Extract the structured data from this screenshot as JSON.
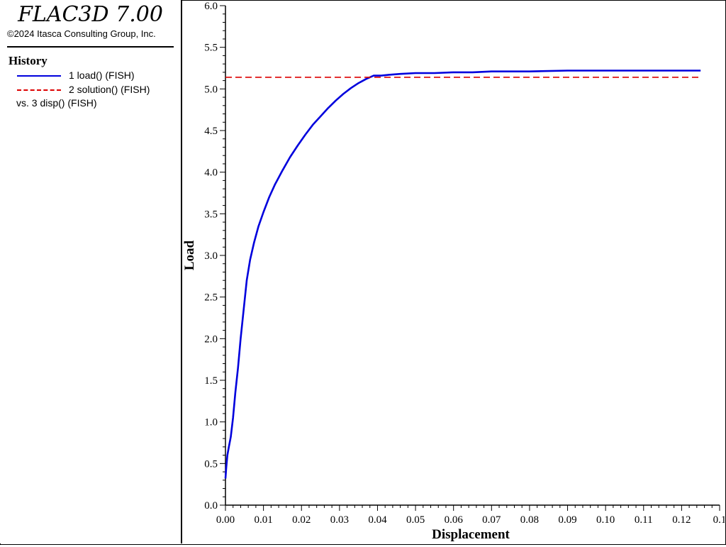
{
  "app": {
    "title": "FLAC3D 7.00",
    "copyright": "©2024 Itasca Consulting Group, Inc."
  },
  "legend": {
    "heading": "History",
    "entries": [
      {
        "label": "1 load() (FISH)",
        "color": "#0000dd",
        "style": "solid"
      },
      {
        "label": "2 solution() (FISH)",
        "color": "#dd0000",
        "style": "dashed"
      }
    ],
    "vs_label": "vs. 3 disp() (FISH)"
  },
  "chart_data": {
    "type": "line",
    "xlabel": "Displacement",
    "ylabel": "Load",
    "xlim": [
      0,
      0.13
    ],
    "ylim": [
      0,
      6.0
    ],
    "x_ticks": [
      "0.00",
      "0.01",
      "0.02",
      "0.03",
      "0.04",
      "0.05",
      "0.06",
      "0.07",
      "0.08",
      "0.09",
      "0.10",
      "0.11",
      "0.12",
      "0.1"
    ],
    "y_ticks": [
      "0.0",
      "0.5",
      "1.0",
      "1.5",
      "2.0",
      "2.5",
      "3.0",
      "3.5",
      "4.0",
      "4.5",
      "5.0",
      "5.5",
      "6.0"
    ],
    "grid": false,
    "series": [
      {
        "name": "1 load() (FISH)",
        "color": "#0000dd",
        "style": "solid",
        "x": [
          0.0,
          0.0002,
          0.0005,
          0.0009,
          0.0014,
          0.002,
          0.0026,
          0.0033,
          0.004,
          0.0048,
          0.0056,
          0.0065,
          0.0075,
          0.0087,
          0.01,
          0.0115,
          0.013,
          0.015,
          0.017,
          0.019,
          0.021,
          0.023,
          0.025,
          0.027,
          0.029,
          0.031,
          0.033,
          0.035,
          0.037,
          0.039,
          0.041,
          0.043,
          0.046,
          0.05,
          0.055,
          0.06,
          0.065,
          0.07,
          0.08,
          0.09,
          0.1,
          0.11,
          0.12,
          0.125
        ],
        "values": [
          0.32,
          0.45,
          0.6,
          0.7,
          0.82,
          1.05,
          1.35,
          1.65,
          2.0,
          2.35,
          2.7,
          2.95,
          3.15,
          3.35,
          3.52,
          3.7,
          3.85,
          4.02,
          4.18,
          4.32,
          4.45,
          4.57,
          4.67,
          4.77,
          4.86,
          4.94,
          5.01,
          5.07,
          5.12,
          5.16,
          5.16,
          5.17,
          5.18,
          5.19,
          5.19,
          5.2,
          5.2,
          5.21,
          5.21,
          5.22,
          5.22,
          5.22,
          5.22,
          5.22
        ]
      },
      {
        "name": "2 solution() (FISH)",
        "color": "#dd0000",
        "style": "dashed",
        "x": [
          0.0,
          0.125
        ],
        "values": [
          5.14,
          5.14
        ]
      }
    ]
  }
}
